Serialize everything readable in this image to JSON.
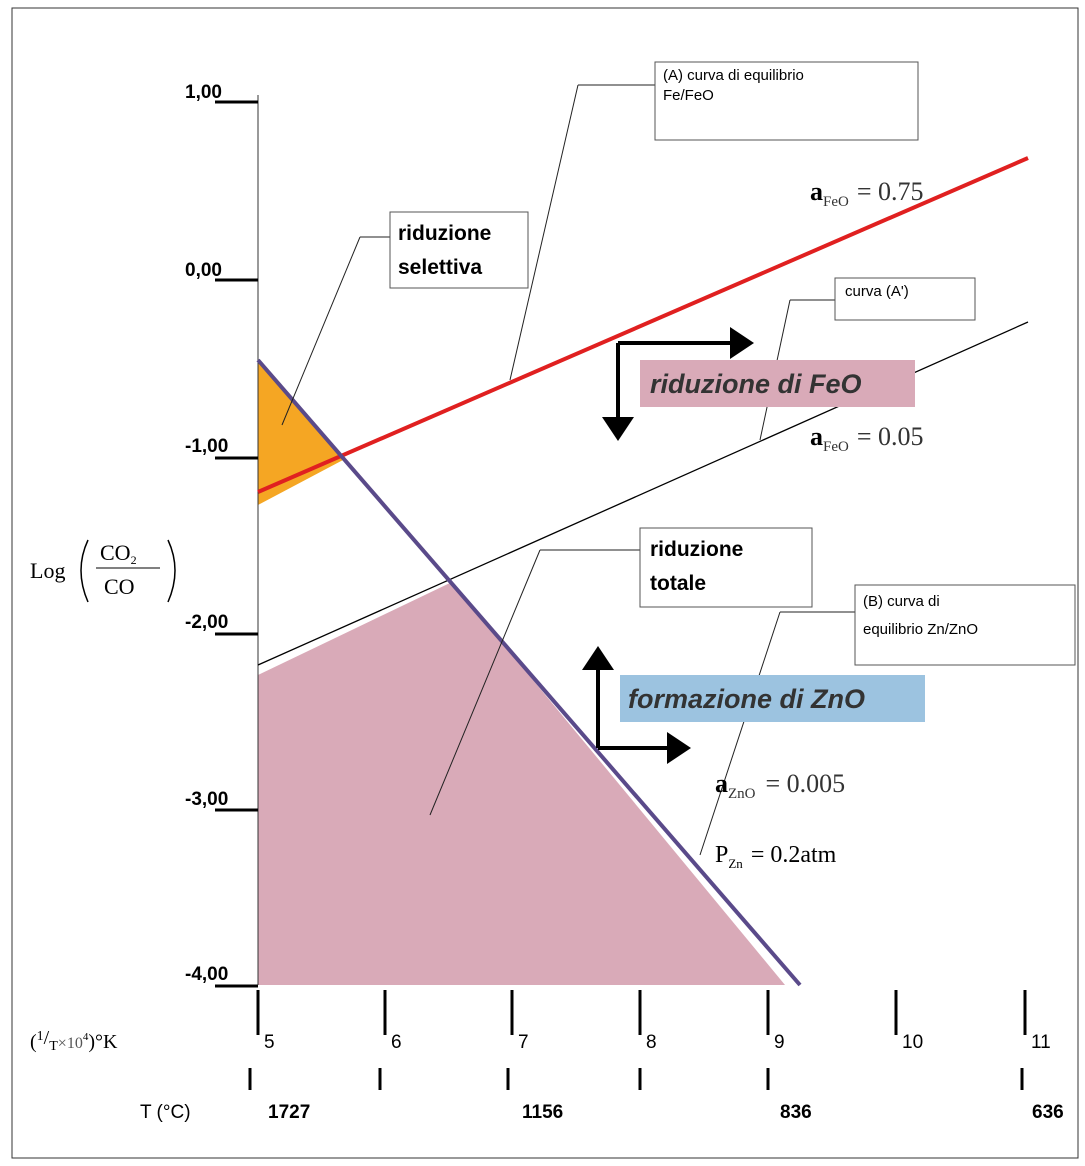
{
  "y_axis": {
    "label": {
      "prefix": "Log",
      "numerator": "CO",
      "num_sub": "2",
      "denominator": "CO"
    },
    "ticks": [
      "1,00",
      "0,00",
      "-1,00",
      "-2,00",
      "-3,00",
      "-4,00"
    ]
  },
  "x_axis": {
    "label": {
      "open": "(",
      "one": "1",
      "slash": "/",
      "T": "T",
      "times": "×10",
      "exp": "4",
      "close": ")°K"
    },
    "ticks": [
      "5",
      "6",
      "7",
      "8",
      "9",
      "10",
      "11"
    ]
  },
  "t_axis": {
    "label": "T (°C)",
    "ticks": [
      "1727",
      "1156",
      "836",
      "636"
    ]
  },
  "boxes": [
    {
      "lines": [
        "(A) curva di equilibrio",
        "Fe/FeO"
      ]
    },
    {
      "lines": [
        "riduzione",
        "selettiva"
      ]
    },
    {
      "lines": [
        "curva (A')"
      ]
    },
    {
      "lines": [
        "riduzione",
        "totale"
      ]
    },
    {
      "lines": [
        "(B) curva di",
        "equilibrio Zn/ZnO"
      ]
    }
  ],
  "regions": [
    "riduzione di FeO",
    "formazione di ZnO"
  ],
  "formulas": [
    {
      "base": "a",
      "sub": "FeO",
      "rest": "= 0.75"
    },
    {
      "base": "a",
      "sub": "FeO",
      "rest": "= 0.05"
    },
    {
      "base": "a",
      "sub": "ZnO",
      "rest": "= 0.005"
    },
    {
      "base": "P",
      "sub": "Zn",
      "rest": "= 0.2atm"
    }
  ]
}
